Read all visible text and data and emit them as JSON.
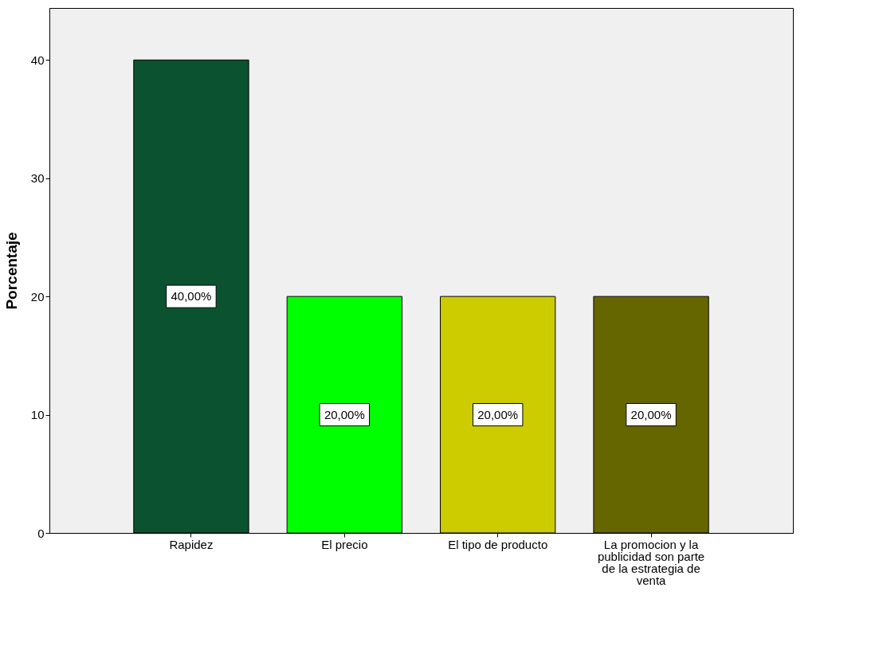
{
  "chart_data": {
    "type": "bar",
    "ylabel": "Porcentaje",
    "categories": [
      "Rapidez",
      "El precio",
      "El tipo de producto",
      "La promocion y la publicidad son parte de la estrategia de venta"
    ],
    "values": [
      40,
      20,
      20,
      20
    ],
    "colors": [
      "#0b5230",
      "#00ff00",
      "#cccc00",
      "#666600"
    ],
    "value_labels": [
      "40,00%",
      "20,00%",
      "20,00%",
      "20,00%"
    ],
    "ylim": [
      0,
      44.4
    ],
    "yticks": [
      0,
      10,
      20,
      30,
      40
    ],
    "grid": false,
    "legend": false
  }
}
